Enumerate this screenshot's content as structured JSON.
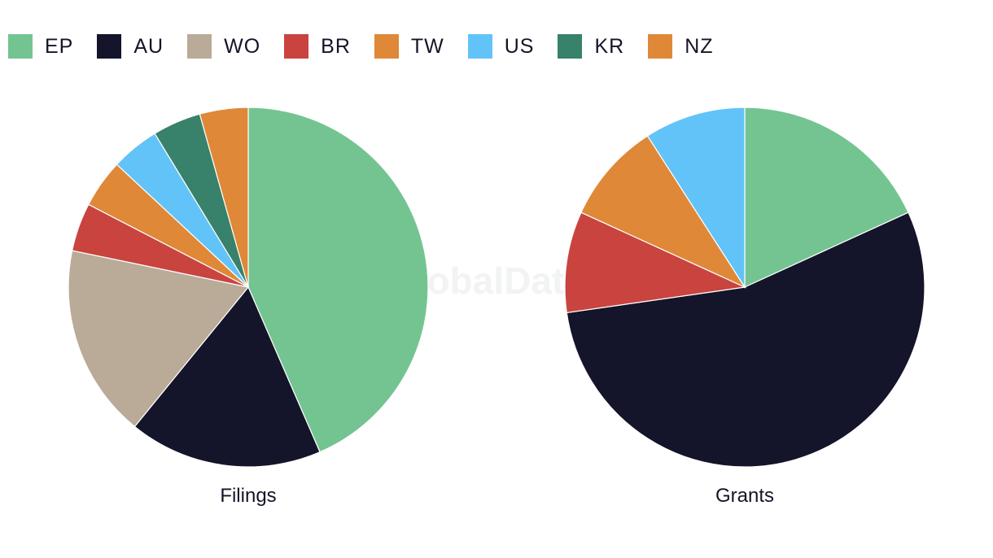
{
  "watermark": "GlobalData",
  "legend": [
    {
      "label": "EP",
      "color": "#74c492"
    },
    {
      "label": "AU",
      "color": "#14142a"
    },
    {
      "label": "WO",
      "color": "#b9ab98"
    },
    {
      "label": "BR",
      "color": "#c9443f"
    },
    {
      "label": "TW",
      "color": "#df8838"
    },
    {
      "label": "US",
      "color": "#62c3f8"
    },
    {
      "label": "KR",
      "color": "#38816a"
    },
    {
      "label": "NZ",
      "color": "#df8838"
    }
  ],
  "chart_data": [
    {
      "type": "pie",
      "title": "Filings",
      "series": [
        {
          "name": "EP",
          "value": 10
        },
        {
          "name": "AU",
          "value": 4
        },
        {
          "name": "WO",
          "value": 4
        },
        {
          "name": "BR",
          "value": 1
        },
        {
          "name": "TW",
          "value": 1
        },
        {
          "name": "US",
          "value": 1
        },
        {
          "name": "KR",
          "value": 1
        },
        {
          "name": "NZ",
          "value": 1
        }
      ]
    },
    {
      "type": "pie",
      "title": "Grants",
      "series": [
        {
          "name": "EP",
          "value": 2
        },
        {
          "name": "AU",
          "value": 6
        },
        {
          "name": "BR",
          "value": 1
        },
        {
          "name": "TW",
          "value": 1
        },
        {
          "name": "US",
          "value": 1
        }
      ]
    }
  ]
}
